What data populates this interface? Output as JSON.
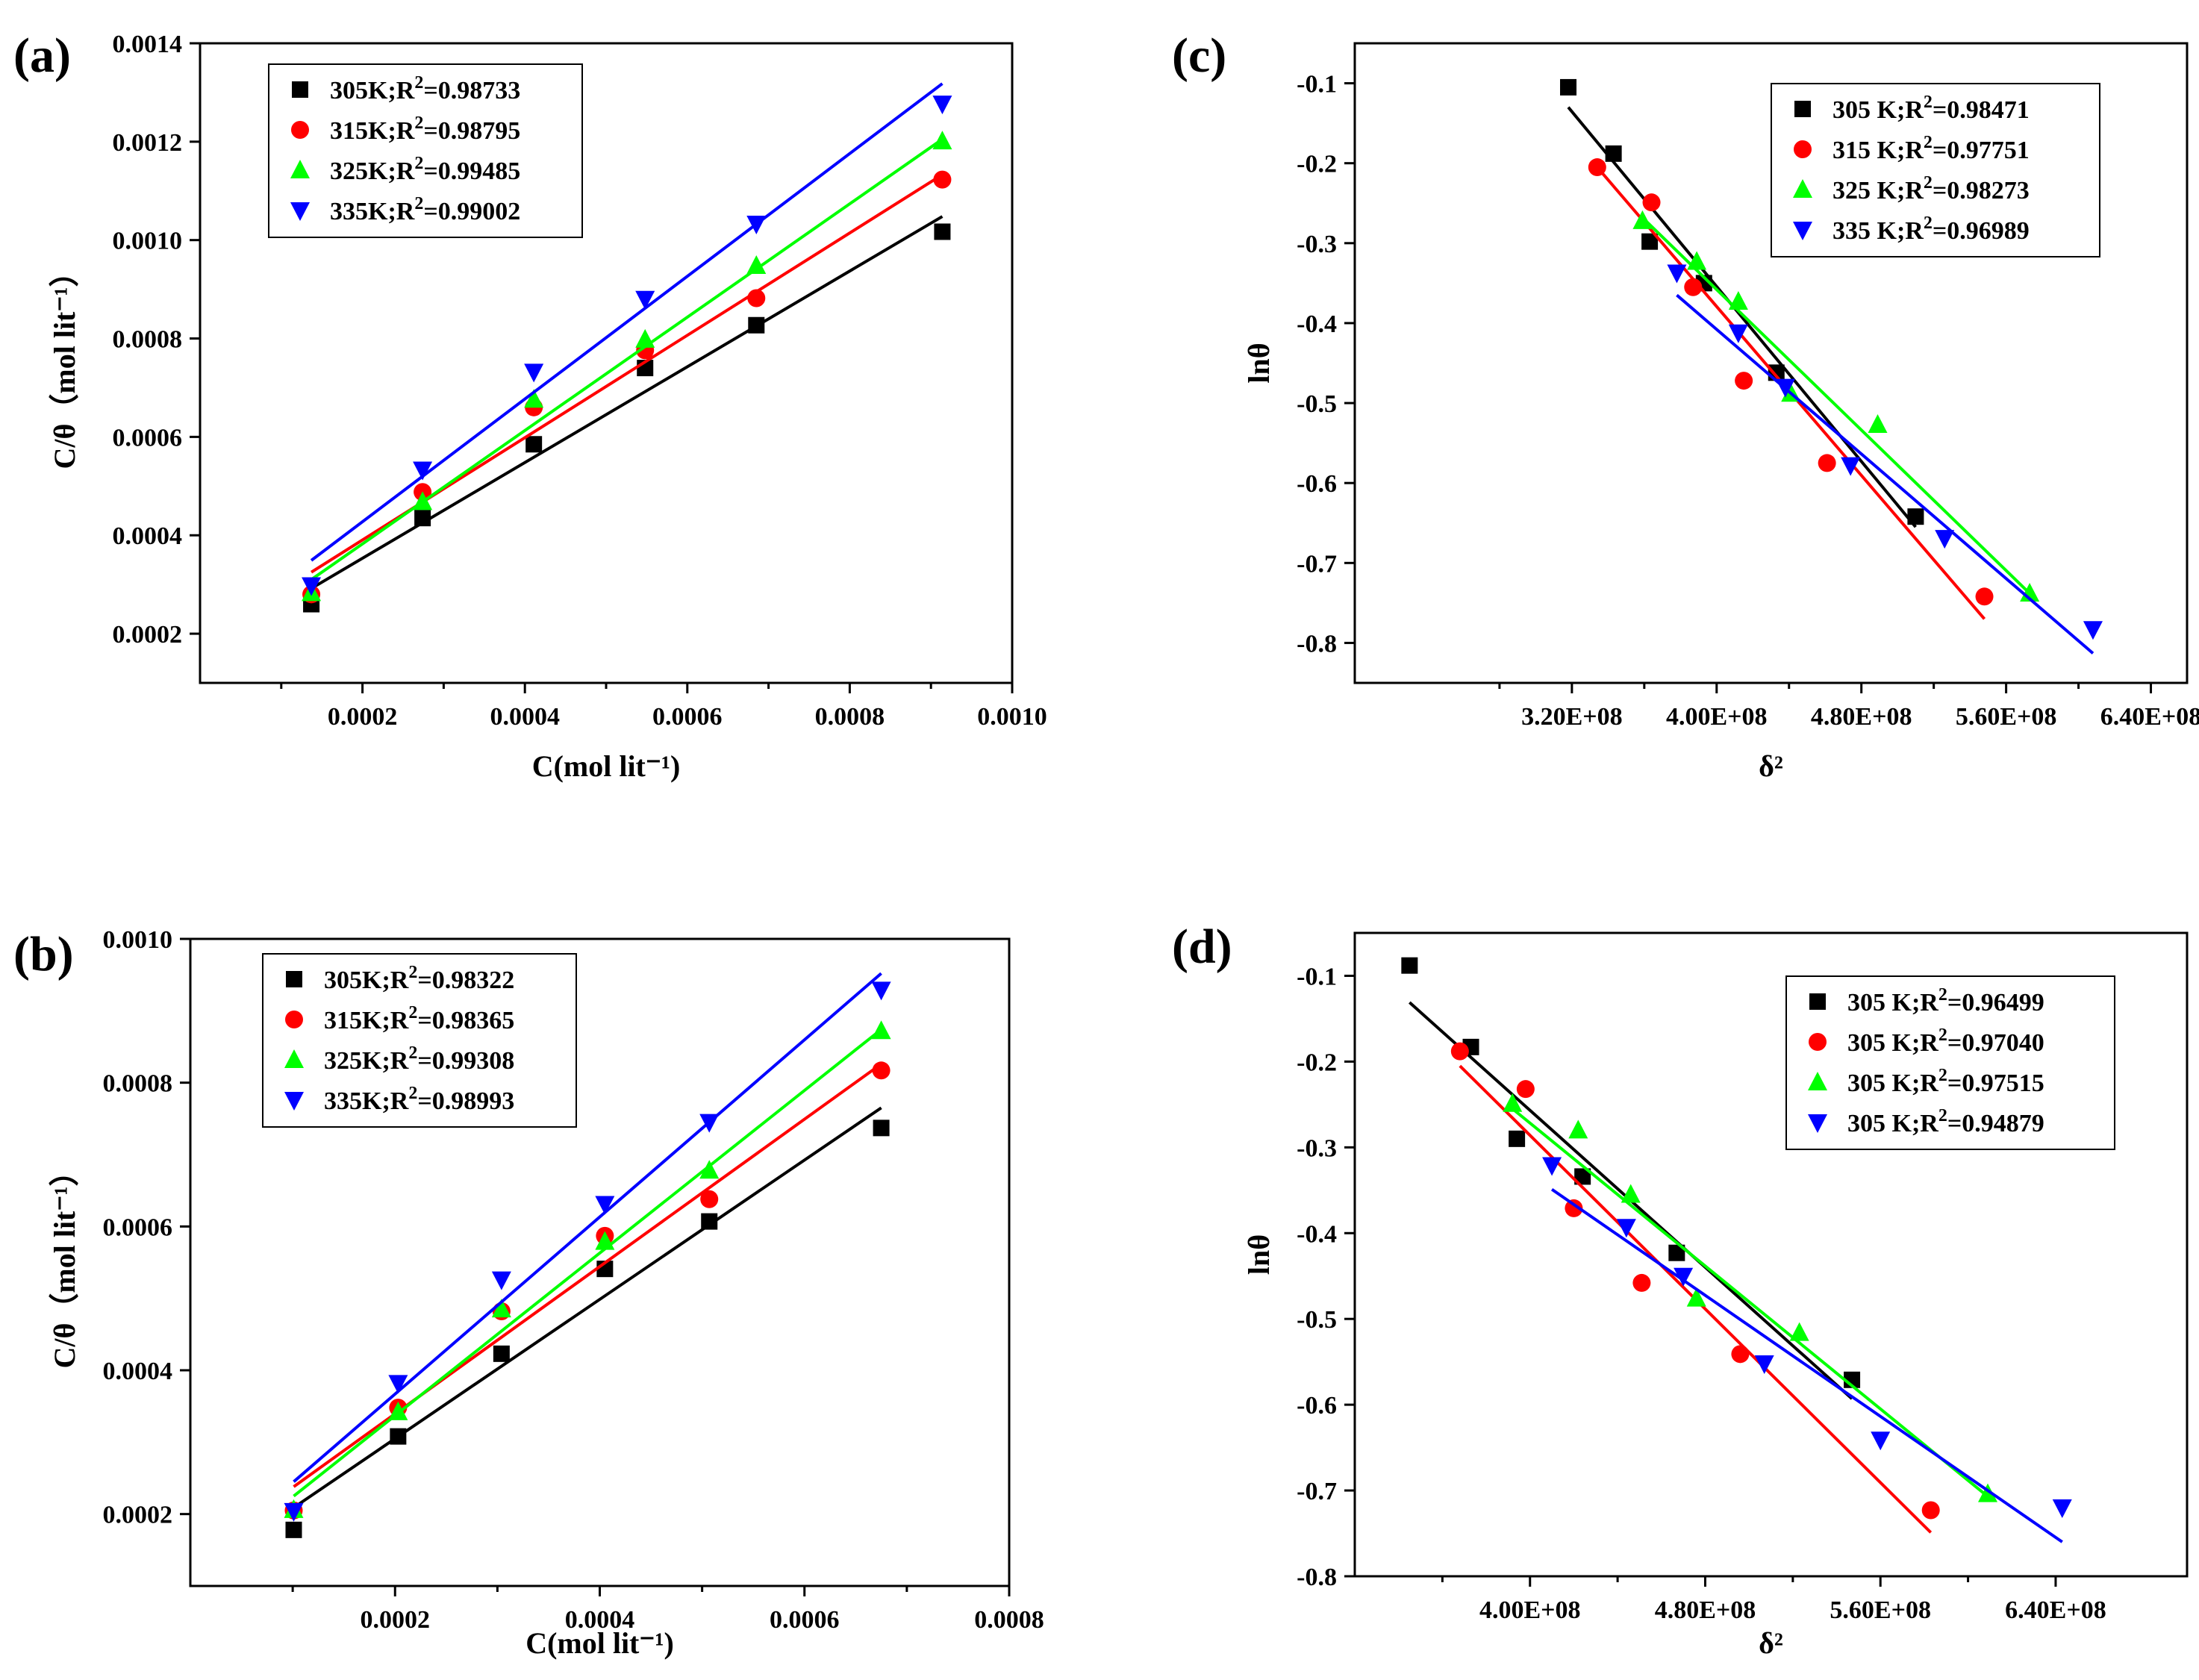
{
  "chart_data": [
    {
      "panel": "(a)",
      "type": "scatter",
      "xlabel": "C(mol lit⁻¹)",
      "ylabel": "C/θ（mol lit⁻¹）",
      "xlim": [
        0,
        0.001
      ],
      "ylim": [
        0.0001,
        0.0014
      ],
      "xticks": [
        0.0002,
        0.0004,
        0.0006,
        0.0008,
        0.001
      ],
      "xtick_labels": [
        "0.0002",
        "0.0004",
        "0.0006",
        "0.0008",
        "0.0010"
      ],
      "yticks": [
        0.0002,
        0.0004,
        0.0006,
        0.0008,
        0.001,
        0.0012,
        0.0014
      ],
      "ytick_labels": [
        "0.0002",
        "0.0004",
        "0.0006",
        "0.0008",
        "0.0010",
        "0.0012",
        "0.0014"
      ],
      "x": [
        0.000137,
        0.000274,
        0.000411,
        0.000548,
        0.000685,
        0.000914
      ],
      "series": [
        {
          "name": "305K",
          "r2": "0.98733",
          "color": "#000000",
          "marker": "square",
          "values": [
            0.00026,
            0.000435,
            0.000585,
            0.00074,
            0.000827,
            0.001017
          ],
          "fit": [
            [
              0.000137,
              0.000292
            ],
            [
              0.000914,
              0.001048
            ]
          ]
        },
        {
          "name": "315K",
          "r2": "0.98795",
          "color": "#ff0000",
          "marker": "circle",
          "values": [
            0.00028,
            0.000488,
            0.00066,
            0.000776,
            0.000882,
            0.001123
          ],
          "fit": [
            [
              0.000137,
              0.000325
            ],
            [
              0.000914,
              0.001133
            ]
          ]
        },
        {
          "name": "325K",
          "r2": "0.99485",
          "color": "#00ff00",
          "marker": "triangle-up",
          "values": [
            0.000283,
            0.000468,
            0.000676,
            0.000798,
            0.000948,
            0.001201
          ],
          "fit": [
            [
              0.000137,
              0.00031
            ],
            [
              0.000914,
              0.001205
            ]
          ]
        },
        {
          "name": "335K",
          "r2": "0.99002",
          "color": "#0000ff",
          "marker": "triangle-down",
          "values": [
            0.000298,
            0.000533,
            0.000732,
            0.00088,
            0.001033,
            0.001277
          ],
          "fit": [
            [
              0.000137,
              0.000349
            ],
            [
              0.000914,
              0.001318
            ]
          ]
        }
      ],
      "legend": {
        "position": "top-left",
        "entries": [
          "305K;R",
          "315K;R",
          "325K;R",
          "335K;R"
        ]
      }
    },
    {
      "panel": "(b)",
      "type": "scatter",
      "xlabel": "C(mol lit⁻¹)",
      "ylabel": "C/θ（mol lit⁻¹）",
      "xlim": [
        0,
        0.0008
      ],
      "ylim": [
        0.0001,
        0.001
      ],
      "xticks": [
        0.0002,
        0.0004,
        0.0006,
        0.0008
      ],
      "xtick_labels": [
        "0.0002",
        "0.0004",
        "0.0006",
        "0.0008"
      ],
      "yticks": [
        0.0002,
        0.0004,
        0.0006,
        0.0008,
        0.001
      ],
      "ytick_labels": [
        "0.0002",
        "0.0004",
        "0.0006",
        "0.0008",
        "0.0010"
      ],
      "x": [
        0.000101,
        0.000203,
        0.000304,
        0.000405,
        0.000507,
        0.000675
      ],
      "series": [
        {
          "name": "305K",
          "r2": "0.98322",
          "color": "#000000",
          "marker": "square",
          "values": [
            0.000178,
            0.000308,
            0.000423,
            0.000541,
            0.000607,
            0.000737
          ],
          "fit": [
            [
              0.000101,
              0.000209
            ],
            [
              0.000675,
              0.000765
            ]
          ]
        },
        {
          "name": "315K",
          "r2": "0.98365",
          "color": "#ff0000",
          "marker": "circle",
          "values": [
            0.000205,
            0.000348,
            0.000482,
            0.000587,
            0.000638,
            0.000817
          ],
          "fit": [
            [
              0.000101,
              0.000238
            ],
            [
              0.000675,
              0.000826
            ]
          ]
        },
        {
          "name": "325K",
          "r2": "0.99308",
          "color": "#00ff00",
          "marker": "triangle-up",
          "values": [
            0.000206,
            0.000342,
            0.000485,
            0.000579,
            0.000678,
            0.000872
          ],
          "fit": [
            [
              0.000101,
              0.000225
            ],
            [
              0.000675,
              0.000874
            ]
          ]
        },
        {
          "name": "335K",
          "r2": "0.98993",
          "color": "#0000ff",
          "marker": "triangle-down",
          "values": [
            0.000204,
            0.000382,
            0.000526,
            0.000631,
            0.000745,
            0.000929
          ],
          "fit": [
            [
              0.000101,
              0.000245
            ],
            [
              0.000675,
              0.000952
            ]
          ]
        }
      ],
      "legend": {
        "position": "top-left",
        "entries": [
          "305K;R",
          "315K;R",
          "325K;R",
          "335K;R"
        ]
      }
    },
    {
      "panel": "(c)",
      "type": "scatter",
      "xlabel": "δ²",
      "ylabel": "lnθ",
      "xlim": [
        200000000,
        660000000
      ],
      "ylim": [
        -0.85,
        -0.05
      ],
      "xticks": [
        320000000,
        400000000,
        480000000,
        560000000,
        640000000
      ],
      "xtick_labels": [
        "3.20E+08",
        "4.00E+08",
        "4.80E+08",
        "5.60E+08",
        "6.40E+08"
      ],
      "yticks": [
        -0.1,
        -0.2,
        -0.3,
        -0.4,
        -0.5,
        -0.6,
        -0.7,
        -0.8
      ],
      "ytick_labels": [
        "-0.1",
        "-0.2",
        "-0.3",
        "-0.4",
        "-0.5",
        "-0.6",
        "-0.7",
        "-0.8"
      ],
      "series": [
        {
          "name": "305 K",
          "r2": "0.98471",
          "color": "#000000",
          "marker": "square",
          "x": [
            318000000,
            343000000,
            363000000,
            393000000,
            433000000,
            510000000
          ],
          "y": [
            -0.105,
            -0.188,
            -0.298,
            -0.35,
            -0.462,
            -0.642
          ],
          "fit": [
            [
              318000000,
              -0.13
            ],
            [
              510000000,
              -0.655
            ]
          ]
        },
        {
          "name": "315 K",
          "r2": "0.97751",
          "color": "#ff0000",
          "marker": "circle",
          "x": [
            334000000,
            364000000,
            387000000,
            415000000,
            461000000,
            548000000
          ],
          "y": [
            -0.205,
            -0.249,
            -0.355,
            -0.472,
            -0.575,
            -0.742
          ],
          "fit": [
            [
              334000000,
              -0.205
            ],
            [
              548000000,
              -0.77
            ]
          ]
        },
        {
          "name": "325 K",
          "r2": "0.98273",
          "color": "#00ff00",
          "marker": "triangle-up",
          "x": [
            359000000,
            389000000,
            412000000,
            441000000,
            489000000,
            573000000
          ],
          "y": [
            -0.272,
            -0.323,
            -0.373,
            -0.488,
            -0.527,
            -0.738
          ],
          "fit": [
            [
              359000000,
              -0.268
            ],
            [
              573000000,
              -0.738
            ]
          ]
        },
        {
          "name": "335 K",
          "r2": "0.96989",
          "color": "#0000ff",
          "marker": "triangle-down",
          "x": [
            378000000,
            412000000,
            438000000,
            474000000,
            526000000,
            608000000
          ],
          "y": [
            -0.337,
            -0.412,
            -0.48,
            -0.578,
            -0.669,
            -0.783
          ],
          "fit": [
            [
              378000000,
              -0.365
            ],
            [
              608000000,
              -0.813
            ]
          ]
        }
      ],
      "legend": {
        "position": "top-right",
        "entries": [
          "305 K;R",
          "315 K;R",
          "325 K;R",
          "335 K;R"
        ]
      }
    },
    {
      "panel": "(d)",
      "type": "scatter",
      "xlabel": "δ²",
      "ylabel": "lnθ",
      "xlim": [
        320000000,
        700000000
      ],
      "ylim": [
        -0.8,
        -0.05
      ],
      "xticks": [
        400000000,
        480000000,
        560000000,
        640000000
      ],
      "xtick_labels": [
        "4.00E+08",
        "4.80E+08",
        "5.60E+08",
        "6.40E+08"
      ],
      "yticks": [
        -0.1,
        -0.2,
        -0.3,
        -0.4,
        -0.5,
        -0.6,
        -0.7,
        -0.8
      ],
      "ytick_labels": [
        "-0.1",
        "-0.2",
        "-0.3",
        "-0.4",
        "-0.5",
        "-0.6",
        "-0.7",
        "-0.8"
      ],
      "series": [
        {
          "name": "305 K",
          "r2": "0.96499",
          "color": "#000000",
          "marker": "square",
          "x": [
            345000000,
            373000000,
            394000000,
            424000000,
            467000000,
            547000000
          ],
          "y": [
            -0.088,
            -0.183,
            -0.29,
            -0.334,
            -0.423,
            -0.571
          ],
          "fit": [
            [
              345000000,
              -0.131
            ],
            [
              547000000,
              -0.593
            ]
          ]
        },
        {
          "name": "305 K",
          "r2": "0.97040",
          "color": "#ff0000",
          "marker": "circle",
          "x": [
            368000000,
            398000000,
            420000000,
            451000000,
            496000000,
            583000000
          ],
          "y": [
            -0.188,
            -0.232,
            -0.371,
            -0.458,
            -0.541,
            -0.723
          ],
          "fit": [
            [
              368000000,
              -0.205
            ],
            [
              583000000,
              -0.749
            ]
          ]
        },
        {
          "name": "305 K",
          "r2": "0.97515",
          "color": "#00ff00",
          "marker": "triangle-up",
          "x": [
            392000000,
            422000000,
            446000000,
            476000000,
            523000000,
            609000000
          ],
          "y": [
            -0.249,
            -0.28,
            -0.355,
            -0.476,
            -0.516,
            -0.704
          ],
          "fit": [
            [
              392000000,
              -0.255
            ],
            [
              609000000,
              -0.707
            ]
          ]
        },
        {
          "name": "305 K",
          "r2": "0.94879",
          "color": "#0000ff",
          "marker": "triangle-down",
          "x": [
            410000000,
            444000000,
            470000000,
            507000000,
            560000000,
            643000000
          ],
          "y": [
            -0.321,
            -0.393,
            -0.45,
            -0.552,
            -0.641,
            -0.72
          ],
          "fit": [
            [
              410000000,
              -0.349
            ],
            [
              643000000,
              -0.76
            ]
          ]
        }
      ],
      "legend": {
        "position": "top-right",
        "entries": [
          "305 K;R",
          "305 K;R",
          "305 K;R",
          "305 K;R"
        ]
      }
    }
  ]
}
